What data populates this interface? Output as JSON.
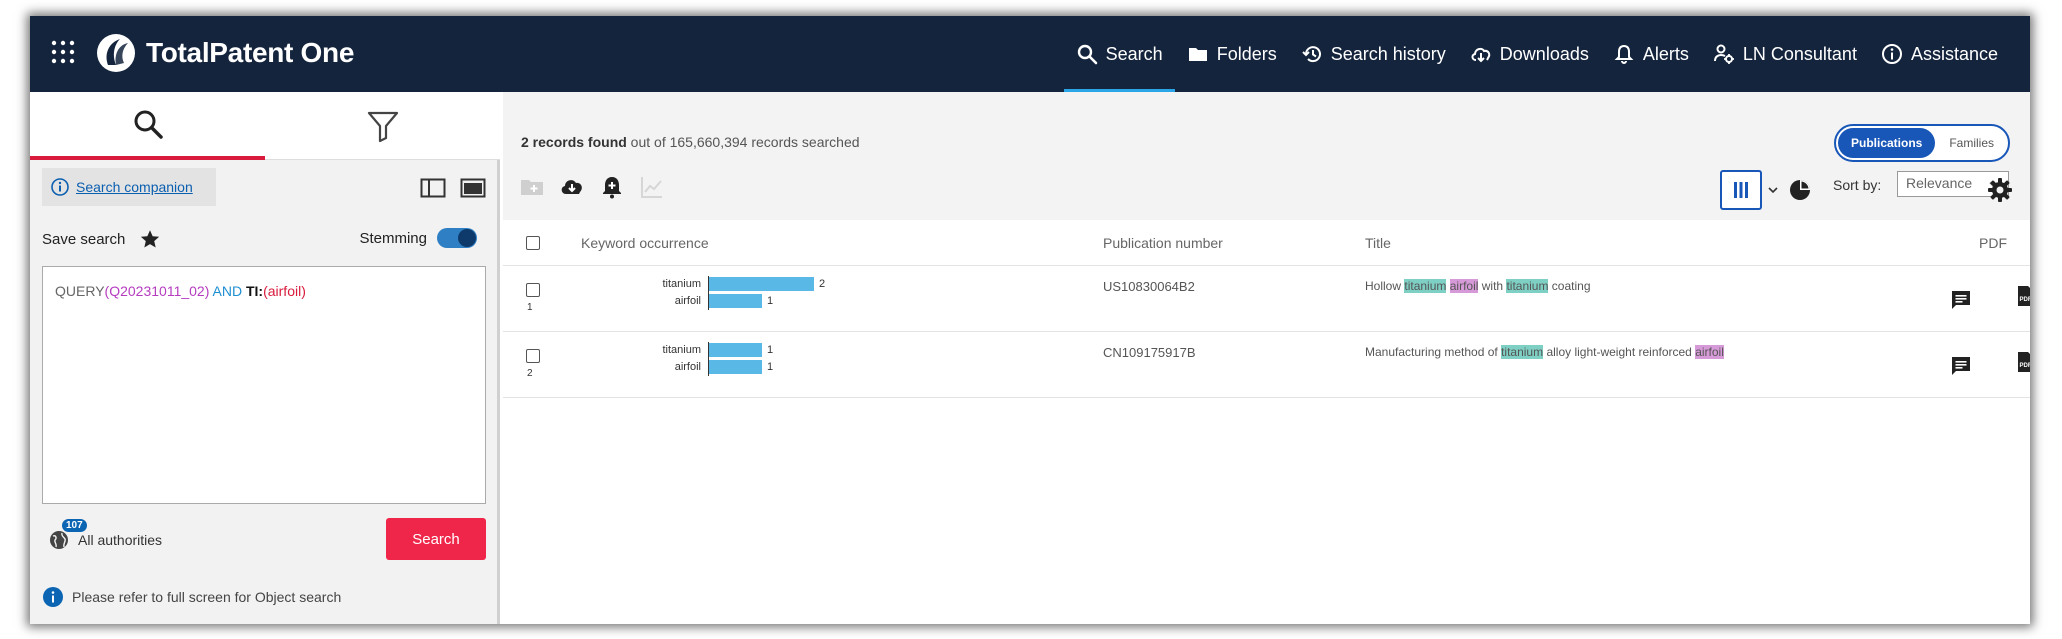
{
  "app": {
    "name": "TotalPatent One",
    "nav": [
      {
        "label": "Search",
        "icon": "search-icon"
      },
      {
        "label": "Folders",
        "icon": "folder-icon"
      },
      {
        "label": "Search history",
        "icon": "history-icon"
      },
      {
        "label": "Downloads",
        "icon": "cloud-download-icon"
      },
      {
        "label": "Alerts",
        "icon": "bell-icon"
      },
      {
        "label": "LN Consultant",
        "icon": "user-gear-icon"
      },
      {
        "label": "Assistance",
        "icon": "info-icon"
      }
    ]
  },
  "left": {
    "companion_label": "Search companion",
    "save_search_label": "Save search",
    "stemming_label": "Stemming",
    "stemming_on": true,
    "query": {
      "query_kw": "QUERY",
      "open1": "(",
      "query_id": "Q20231011_02",
      "close1": ")",
      "and_op": " AND ",
      "field": "TI:",
      "open2": "(",
      "term": "airfoil",
      "close2": ")"
    },
    "authorities_count": "107",
    "authorities_label": "All authorities",
    "search_button": "Search",
    "note": "Please refer to full screen for Object search"
  },
  "main": {
    "records_bold": "2 records found",
    "records_rest": " out of 165,660,394 records searched",
    "switch": {
      "on": "Publications",
      "off": "Families"
    },
    "sort_label": "Sort by:",
    "sort_value": "Relevance",
    "columns": {
      "keyword": "Keyword occurrence",
      "pubnum": "Publication number",
      "title": "Title",
      "pdf": "PDF"
    },
    "rows": [
      {
        "num": "1",
        "keywords": [
          {
            "term": "titanium",
            "count": 2
          },
          {
            "term": "airfoil",
            "count": 1
          }
        ],
        "pubnum": "US10830064B2",
        "title_parts": [
          {
            "text": "Hollow ",
            "hl": ""
          },
          {
            "text": "titanium",
            "hl": "t"
          },
          {
            "text": " ",
            "hl": ""
          },
          {
            "text": "airfoil",
            "hl": "a"
          },
          {
            "text": " with ",
            "hl": ""
          },
          {
            "text": "titanium",
            "hl": "t"
          },
          {
            "text": " coating",
            "hl": ""
          }
        ]
      },
      {
        "num": "2",
        "keywords": [
          {
            "term": "titanium",
            "count": 1
          },
          {
            "term": "airfoil",
            "count": 1
          }
        ],
        "pubnum": "CN109175917B",
        "title_parts": [
          {
            "text": "Manufacturing method of ",
            "hl": ""
          },
          {
            "text": "titanium",
            "hl": "t"
          },
          {
            "text": " alloy light-weight reinforced ",
            "hl": ""
          },
          {
            "text": "airfoil",
            "hl": "a"
          }
        ]
      }
    ]
  },
  "colors": {
    "topbar": "#14243d",
    "accent_blue": "#1856b8",
    "search_red": "#f0254a",
    "bar_blue": "#5ab8e6",
    "highlight_titanium": "#7fd0c4",
    "highlight_airfoil": "#d79ad8"
  }
}
